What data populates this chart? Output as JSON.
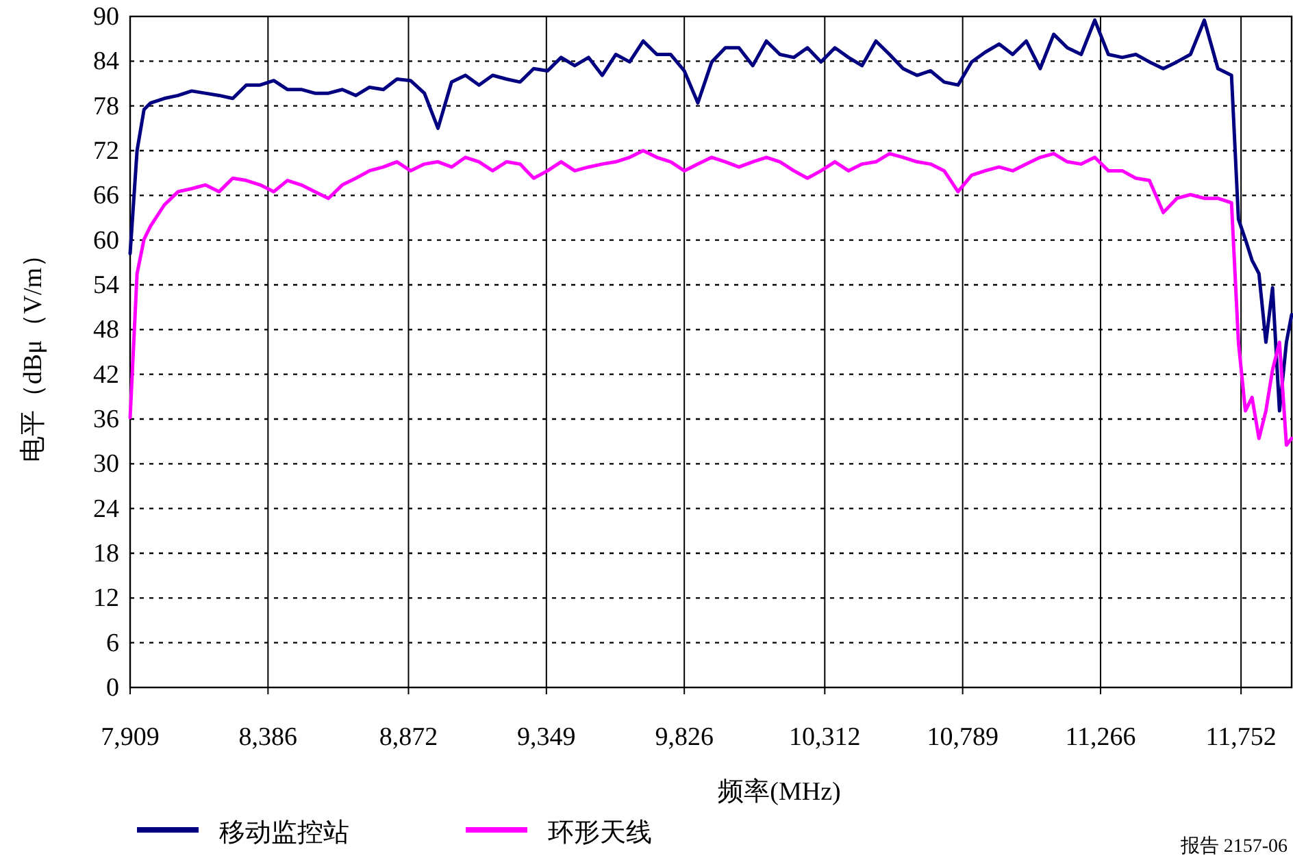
{
  "chart_data": {
    "type": "line",
    "xlabel": "频率(MHz)",
    "ylabel": "电平（dBμ（V/m）",
    "x": [
      7909,
      7933,
      7957,
      7980,
      8027,
      8075,
      8122,
      8169,
      8217,
      8264,
      8311,
      8359,
      8406,
      8453,
      8501,
      8548,
      8595,
      8643,
      8690,
      8737,
      8785,
      8832,
      8879,
      8927,
      8974,
      9021,
      9069,
      9116,
      9163,
      9211,
      9258,
      9305,
      9353,
      9400,
      9447,
      9495,
      9542,
      9589,
      9637,
      9684,
      9731,
      9779,
      9826,
      9873,
      9921,
      9968,
      10015,
      10063,
      10110,
      10157,
      10205,
      10252,
      10299,
      10347,
      10394,
      10441,
      10489,
      10536,
      10583,
      10631,
      10678,
      10725,
      10773,
      10820,
      10867,
      10915,
      10962,
      11009,
      11057,
      11104,
      11151,
      11199,
      11246,
      11293,
      11341,
      11388,
      11435,
      11483,
      11530,
      11577,
      11625,
      11672,
      11719,
      11743,
      11767,
      11790,
      11814,
      11838,
      11861,
      11885,
      11909,
      11927
    ],
    "series": [
      {
        "name": "移动监控站",
        "color": "#000080",
        "values": [
          58.2,
          72.0,
          77.5,
          78.4,
          79.0,
          79.4,
          80.0,
          79.7,
          79.4,
          79.0,
          80.8,
          80.8,
          81.4,
          80.2,
          80.2,
          79.7,
          79.7,
          80.2,
          79.4,
          80.5,
          80.2,
          81.6,
          81.4,
          79.7,
          75.0,
          81.2,
          82.1,
          80.8,
          82.1,
          81.6,
          81.2,
          83.0,
          82.7,
          84.5,
          83.4,
          84.5,
          82.1,
          84.9,
          83.9,
          86.7,
          84.9,
          84.9,
          82.7,
          78.4,
          83.9,
          85.8,
          85.8,
          83.4,
          86.7,
          84.9,
          84.5,
          85.8,
          83.9,
          85.8,
          84.5,
          83.4,
          86.7,
          84.9,
          83.0,
          82.1,
          82.7,
          81.2,
          80.8,
          83.9,
          85.2,
          86.3,
          84.9,
          86.7,
          83.0,
          87.6,
          85.8,
          84.9,
          89.5,
          84.9,
          84.5,
          84.9,
          83.9,
          83.0,
          83.9,
          84.9,
          89.5,
          83.0,
          82.1,
          62.8,
          60.1,
          57.3,
          55.5,
          46.3,
          53.6,
          37.1,
          46.3,
          50.0
        ]
      },
      {
        "name": "环形天线",
        "color": "#ff00ff",
        "values": [
          36.2,
          55.5,
          60.1,
          61.9,
          64.7,
          66.5,
          66.9,
          67.4,
          66.5,
          68.3,
          68.0,
          67.4,
          66.5,
          68.0,
          67.4,
          66.5,
          65.6,
          67.4,
          68.3,
          69.3,
          69.8,
          70.5,
          69.3,
          70.2,
          70.5,
          69.8,
          71.1,
          70.5,
          69.3,
          70.5,
          70.2,
          68.3,
          69.3,
          70.5,
          69.3,
          69.8,
          70.2,
          70.5,
          71.1,
          72.0,
          71.1,
          70.5,
          69.3,
          70.2,
          71.1,
          70.5,
          69.8,
          70.5,
          71.1,
          70.5,
          69.3,
          68.3,
          69.3,
          70.5,
          69.3,
          70.2,
          70.5,
          71.6,
          71.1,
          70.5,
          70.2,
          69.3,
          66.5,
          68.7,
          69.3,
          69.8,
          69.3,
          70.2,
          71.1,
          71.6,
          70.5,
          70.2,
          71.1,
          69.3,
          69.3,
          68.3,
          68.0,
          63.7,
          65.6,
          66.1,
          65.6,
          65.6,
          65.0,
          46.3,
          37.1,
          38.9,
          33.4,
          37.1,
          42.6,
          46.3,
          32.5,
          33.4
        ]
      }
    ],
    "xlim": [
      7909,
      11927
    ],
    "xticks": [
      {
        "value": 7909,
        "label": "7,909"
      },
      {
        "value": 8386,
        "label": "8,386"
      },
      {
        "value": 8872,
        "label": "8,872"
      },
      {
        "value": 9349,
        "label": "9,349"
      },
      {
        "value": 9826,
        "label": "9,826"
      },
      {
        "value": 10312,
        "label": "10,312"
      },
      {
        "value": 10789,
        "label": "10,789"
      },
      {
        "value": 11266,
        "label": "11,266"
      },
      {
        "value": 11752,
        "label": "11,752"
      }
    ],
    "ylim": [
      0,
      90
    ],
    "yticks": [
      0,
      6,
      12,
      18,
      24,
      30,
      36,
      42,
      48,
      54,
      60,
      66,
      72,
      78,
      84,
      90
    ],
    "grid": true,
    "legend": "bottom",
    "annotations": [
      "报告 2157-06"
    ]
  }
}
